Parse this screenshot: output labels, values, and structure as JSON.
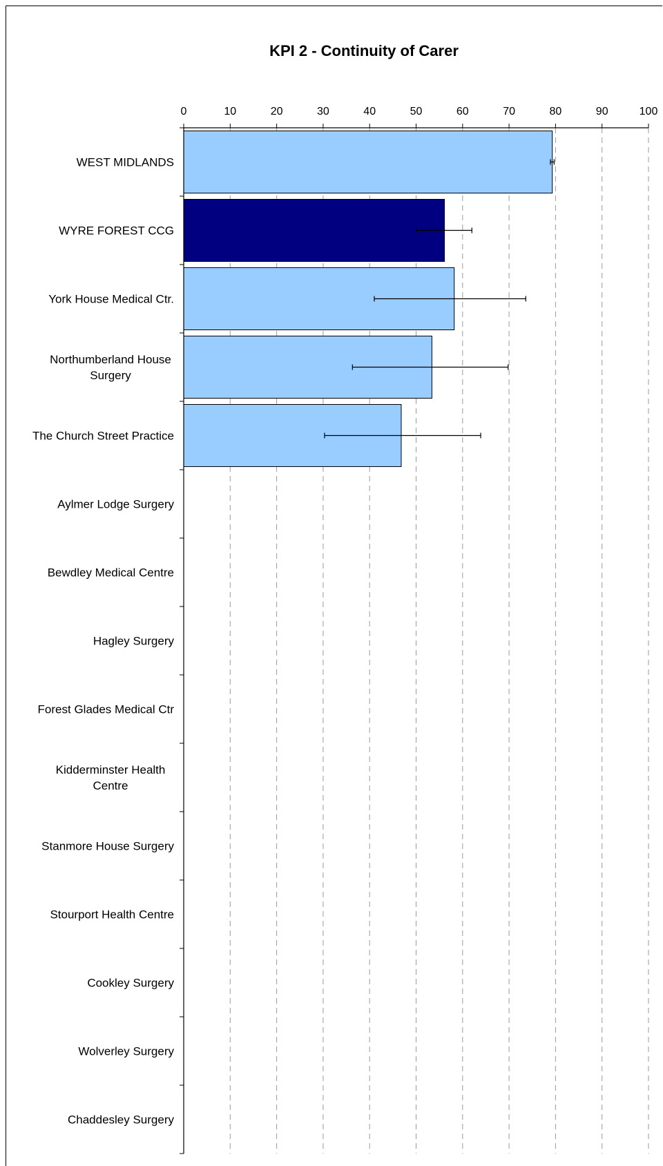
{
  "chart_data": {
    "type": "bar",
    "orientation": "horizontal",
    "title": "KPI 2 - Continuity of Carer",
    "xlabel": "",
    "ylabel": "",
    "xlim": [
      0,
      100
    ],
    "xticks": [
      0,
      10,
      20,
      30,
      40,
      50,
      60,
      70,
      80,
      90,
      100
    ],
    "grid": "vertical dashed",
    "legend": "none",
    "categories": [
      [
        "WEST MIDLANDS"
      ],
      [
        "WYRE FOREST CCG"
      ],
      [
        "York House Medical Ctr."
      ],
      [
        "Northumberland House",
        "Surgery"
      ],
      [
        "The Church Street Practice"
      ],
      [
        "Aylmer Lodge Surgery"
      ],
      [
        "Bewdley Medical Centre"
      ],
      [
        "Hagley Surgery"
      ],
      [
        "Forest Glades Medical Ctr"
      ],
      [
        "Kidderminster Health",
        "Centre"
      ],
      [
        "Stanmore House Surgery"
      ],
      [
        "Stourport Health Centre"
      ],
      [
        "Cookley Surgery"
      ],
      [
        "Wolverley Surgery"
      ],
      [
        "Chaddesley Surgery"
      ]
    ],
    "values": [
      79.3,
      56.1,
      58.2,
      53.4,
      46.8,
      null,
      null,
      null,
      null,
      null,
      null,
      null,
      null,
      null,
      null
    ],
    "error_low": [
      78.9,
      50.0,
      41.0,
      36.3,
      30.3,
      null,
      null,
      null,
      null,
      null,
      null,
      null,
      null,
      null,
      null
    ],
    "error_high": [
      79.7,
      62.0,
      73.6,
      69.8,
      63.9,
      null,
      null,
      null,
      null,
      null,
      null,
      null,
      null,
      null,
      null
    ],
    "bar_colors": [
      "#99ccff",
      "#000080",
      "#99ccff",
      "#99ccff",
      "#99ccff",
      null,
      null,
      null,
      null,
      null,
      null,
      null,
      null,
      null,
      null
    ],
    "colors": {
      "highlight": "#000080",
      "default": "#99ccff",
      "grid": "#999999",
      "axis": "#000000"
    }
  }
}
